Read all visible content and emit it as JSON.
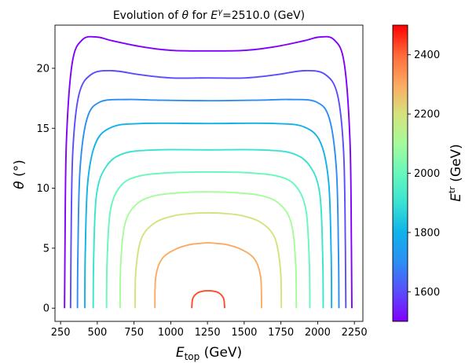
{
  "chart_data": {
    "type": "line",
    "title": {
      "prefix": "Evolution of ",
      "symbol": "θ",
      "middle": " for ",
      "E": "E",
      "sup": "γ",
      "suffix": "=2510.0 (GeV)"
    },
    "xlabel": {
      "main": "E",
      "sub": "top",
      "unit": " (GeV)"
    },
    "ylabel": {
      "symbol": "θ",
      "unit": " (°)"
    },
    "xlim": [
      212,
      2308
    ],
    "ylim": [
      -1.1,
      23.6
    ],
    "xticks": [
      "250",
      "500",
      "750",
      "1000",
      "1250",
      "1500",
      "1750",
      "2000",
      "2250"
    ],
    "yticks": [
      "0",
      "5",
      "10",
      "15",
      "20"
    ],
    "colorbar": {
      "label": {
        "main": "E",
        "sup": "tr",
        "unit": " (GeV)"
      },
      "range": [
        1500,
        2500
      ],
      "ticks": [
        "1600",
        "1800",
        "2000",
        "2200",
        "2400"
      ],
      "colormap": "rainbow"
    },
    "series": [
      {
        "E_tr": 1500,
        "color": "#8000ff",
        "x": [
          277,
          280,
          290,
          330,
          400,
          500,
          600,
          800,
          1000,
          1255,
          1510,
          1710,
          1910,
          2010,
          2110,
          2180,
          2220,
          2230,
          2233
        ],
        "y": [
          0,
          5,
          14,
          20.5,
          22.4,
          22.6,
          22.3,
          21.8,
          21.5,
          21.45,
          21.5,
          21.8,
          22.3,
          22.6,
          22.4,
          20.5,
          14,
          5,
          0
        ]
      },
      {
        "E_tr": 1600,
        "color": "#5a4dfc",
        "x": [
          318,
          321,
          333,
          375,
          460,
          600,
          800,
          1000,
          1255,
          1510,
          1710,
          1910,
          2050,
          2135,
          2177,
          2189,
          2192
        ],
        "y": [
          0,
          5,
          13,
          17.8,
          19.5,
          19.8,
          19.45,
          19.2,
          19.2,
          19.2,
          19.45,
          19.8,
          19.5,
          17.8,
          13,
          5,
          0
        ]
      },
      {
        "E_tr": 1700,
        "color": "#2c8ef4",
        "x": [
          365,
          368,
          382,
          430,
          520,
          700,
          900,
          1255,
          1610,
          1810,
          1990,
          2080,
          2128,
          2142,
          2145
        ],
        "y": [
          0,
          4.5,
          11.5,
          15.8,
          17.2,
          17.4,
          17.35,
          17.3,
          17.35,
          17.4,
          17.2,
          15.8,
          11.5,
          4.5,
          0
        ]
      },
      {
        "E_tr": 1800,
        "color": "#10b2ea",
        "x": [
          415,
          418,
          435,
          490,
          600,
          800,
          1255,
          1710,
          1910,
          2020,
          2075,
          2092,
          2095
        ],
        "y": [
          0,
          4.5,
          10.5,
          13.8,
          15.1,
          15.4,
          15.4,
          15.4,
          15.1,
          13.8,
          10.5,
          4.5,
          0
        ]
      },
      {
        "E_tr": 1900,
        "color": "#3ae2d2",
        "x": [
          472,
          476,
          495,
          560,
          680,
          900,
          1255,
          1610,
          1830,
          1950,
          2015,
          2034,
          2038
        ],
        "y": [
          0,
          4.5,
          9.5,
          11.8,
          12.9,
          13.2,
          13.2,
          13.2,
          12.9,
          11.8,
          9.5,
          4.5,
          0
        ]
      },
      {
        "E_tr": 2000,
        "color": "#66f8bd",
        "x": [
          563,
          567,
          590,
          660,
          780,
          1000,
          1255,
          1510,
          1730,
          1850,
          1920,
          1943,
          1947
        ],
        "y": [
          0,
          4,
          8.2,
          10.2,
          11.0,
          11.3,
          11.35,
          11.3,
          11.0,
          10.2,
          8.2,
          4,
          0
        ]
      },
      {
        "E_tr": 2100,
        "color": "#a6fb9a",
        "x": [
          655,
          660,
          690,
          770,
          900,
          1100,
          1255,
          1410,
          1610,
          1740,
          1820,
          1850,
          1855
        ],
        "y": [
          0,
          3.8,
          7.1,
          8.7,
          9.4,
          9.65,
          9.7,
          9.65,
          9.4,
          8.7,
          7.1,
          3.8,
          0
        ]
      },
      {
        "E_tr": 2200,
        "color": "#d5e27e",
        "x": [
          757,
          763,
          800,
          890,
          1020,
          1150,
          1255,
          1360,
          1490,
          1620,
          1710,
          1747,
          1753
        ],
        "y": [
          0,
          3.2,
          5.8,
          7.1,
          7.7,
          7.9,
          7.95,
          7.9,
          7.7,
          7.1,
          5.8,
          3.2,
          0
        ]
      },
      {
        "E_tr": 2300,
        "color": "#fcaa61",
        "x": [
          892,
          898,
          940,
          1030,
          1130,
          1200,
          1255,
          1310,
          1380,
          1480,
          1570,
          1612,
          1618
        ],
        "y": [
          0,
          2.6,
          4.1,
          4.9,
          5.3,
          5.4,
          5.45,
          5.4,
          5.3,
          4.9,
          4.1,
          2.6,
          0
        ]
      },
      {
        "E_tr": 2400,
        "color": "#ff4d29",
        "x": [
          1143,
          1150,
          1180,
          1220,
          1255,
          1290,
          1330,
          1360,
          1367
        ],
        "y": [
          0,
          0.8,
          1.25,
          1.42,
          1.45,
          1.42,
          1.25,
          0.8,
          0
        ]
      }
    ]
  }
}
